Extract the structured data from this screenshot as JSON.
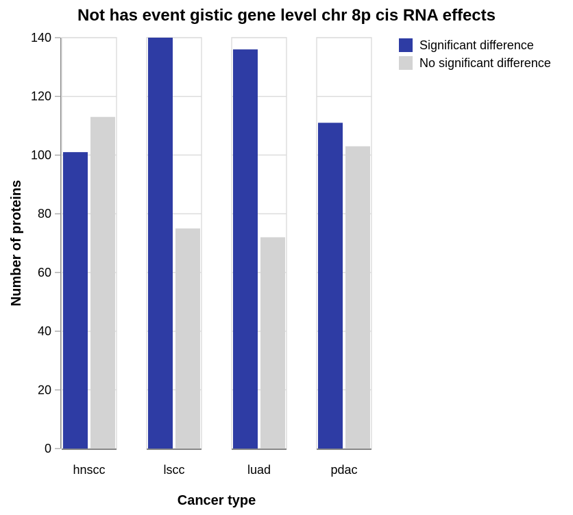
{
  "chart_data": {
    "type": "bar",
    "title": "Not has event gistic gene level chr 8p cis RNA effects",
    "xlabel": "Cancer type",
    "ylabel": "Number of proteins",
    "ylim": [
      0,
      140
    ],
    "yticks": [
      "0",
      "20",
      "40",
      "60",
      "80",
      "100",
      "120",
      "140"
    ],
    "categories": [
      "hnscc",
      "lscc",
      "luad",
      "pdac"
    ],
    "series": [
      {
        "name": "Significant difference",
        "color": "#2e3ca4",
        "values": [
          101,
          140,
          136,
          111
        ]
      },
      {
        "name": "No significant difference",
        "color": "#d3d3d3",
        "values": [
          113,
          75,
          72,
          103
        ]
      }
    ],
    "grid": true,
    "legend_position": "top-right"
  }
}
